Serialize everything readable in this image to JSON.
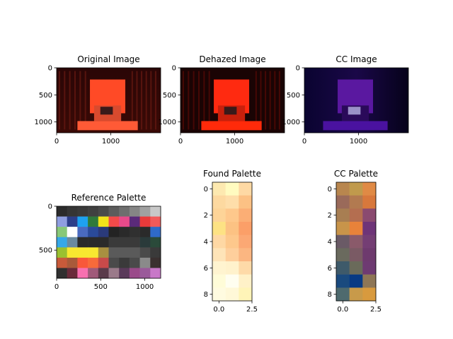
{
  "chart_data": [
    {
      "type": "image",
      "title": "Original Image",
      "x_ticks": [
        0,
        1000
      ],
      "y_ticks": [
        0,
        500,
        1000
      ],
      "xlim": [
        0,
        1920
      ],
      "ylim": [
        1200,
        0
      ],
      "tint": "red"
    },
    {
      "type": "image",
      "title": "Dehazed Image",
      "x_ticks": [
        0,
        1000
      ],
      "y_ticks": [
        0,
        500,
        1000
      ],
      "xlim": [
        0,
        1920
      ],
      "ylim": [
        1200,
        0
      ],
      "tint": "red-bright"
    },
    {
      "type": "image",
      "title": "CC Image",
      "x_ticks": [
        0,
        1000
      ],
      "y_ticks": [
        0,
        500,
        1000
      ],
      "xlim": [
        0,
        1920
      ],
      "ylim": [
        1200,
        0
      ],
      "tint": "purple"
    },
    {
      "type": "image",
      "title": "Reference Palette",
      "x_ticks": [
        0,
        500,
        1000
      ],
      "y_ticks": [
        0,
        500
      ],
      "xlim": [
        0,
        1180
      ],
      "ylim": [
        820,
        0
      ],
      "grid": [
        [
          "#2b2b2b",
          "#353535",
          "#3a3a3a",
          "#404040",
          "#4a4a4a",
          "#5c5c5c",
          "#6e6e6e",
          "#858585",
          "#a0a0a0",
          "#c8c8c8"
        ],
        [
          "#8f9ee0",
          "#2c3e8a",
          "#1ea1f0",
          "#2f7a3a",
          "#f2e21a",
          "#f24a4a",
          "#e84a8a",
          "#5b2a7a",
          "#e83a3a",
          "#f25a5a"
        ],
        [
          "#88c878",
          "#ffffff",
          "#4a6ac0",
          "#2a4a9a",
          "#2a3a7a",
          "#232323",
          "#2a2a2a",
          "#303030",
          "#2a2a2a",
          "#2f6ac8"
        ],
        [
          "#36a8e8",
          "#6a8aa0",
          "#2a2a2a",
          "#2a2a2a",
          "#2a2a2a",
          "#3a3a3a",
          "#3a3a3a",
          "#3a3a3a",
          "#2a3a3a",
          "#2a4a3a"
        ],
        [
          "#9ac030",
          "#f8e830",
          "#f8e830",
          "#f8e830",
          "#a89040",
          "#5a5a5a",
          "#5a5a5a",
          "#5a5a5a",
          "#4a4a4a",
          "#3a3a3a"
        ],
        [
          "#c85a3a",
          "#a85a3a",
          "#f8583a",
          "#f86a3a",
          "#c84a4a",
          "#4a4a4a",
          "#3a3a3a",
          "#4a4a4a",
          "#8a8a8a",
          "#3a3030"
        ],
        [
          "#303030",
          "#6a2a3a",
          "#f870b0",
          "#a05a7a",
          "#5a3a4a",
          "#9a7a8a",
          "#5a3a5a",
          "#9a4a8a",
          "#9a5a9a",
          "#c878c8"
        ]
      ]
    },
    {
      "type": "image",
      "title": "Found Palette",
      "x_ticks": [
        0.0,
        2.5
      ],
      "y_ticks": [
        0,
        2,
        4,
        6,
        8
      ],
      "xlim": [
        -0.5,
        2.5
      ],
      "ylim": [
        8.5,
        -0.5
      ],
      "grid": [
        [
          "#fde9b0",
          "#fffbc0",
          "#fed9a4"
        ],
        [
          "#fdd9a0",
          "#fedeaa",
          "#fcc184"
        ],
        [
          "#fdd498",
          "#fec88c",
          "#fbae75"
        ],
        [
          "#fde284",
          "#fcc283",
          "#fb9f68"
        ],
        [
          "#fed8a4",
          "#fdc88c",
          "#fba874"
        ],
        [
          "#fee4b8",
          "#fecf9c",
          "#fbb681"
        ],
        [
          "#fff4d0",
          "#fff2cc",
          "#fedaa8"
        ],
        [
          "#fffcd8",
          "#fffef0",
          "#fff1c8"
        ],
        [
          "#fffbe0",
          "#fff8d8",
          "#fff4b8"
        ]
      ]
    },
    {
      "type": "image",
      "title": "CC Palette",
      "x_ticks": [
        0.0,
        2.5
      ],
      "y_ticks": [
        0,
        2,
        4,
        6,
        8
      ],
      "xlim": [
        -0.5,
        2.5
      ],
      "ylim": [
        8.5,
        -0.5
      ],
      "grid": [
        [
          "#b8864e",
          "#c09a4c",
          "#e08a45"
        ],
        [
          "#9a6a5a",
          "#b27a50",
          "#d8783c"
        ],
        [
          "#a87e52",
          "#b46e50",
          "#8a4a70"
        ],
        [
          "#c8944a",
          "#e8823a",
          "#6e3478"
        ],
        [
          "#6a5a66",
          "#8a5a6a",
          "#743e74"
        ],
        [
          "#6a6a5e",
          "#7a5a64",
          "#6e3a6e"
        ],
        [
          "#3e5a6a",
          "#6a6a5a",
          "#6e3a72"
        ],
        [
          "#1a4a7e",
          "#083a84",
          "#8e7656"
        ],
        [
          "#4e6a6e",
          "#c89a4a",
          "#d89a3e"
        ]
      ]
    }
  ]
}
